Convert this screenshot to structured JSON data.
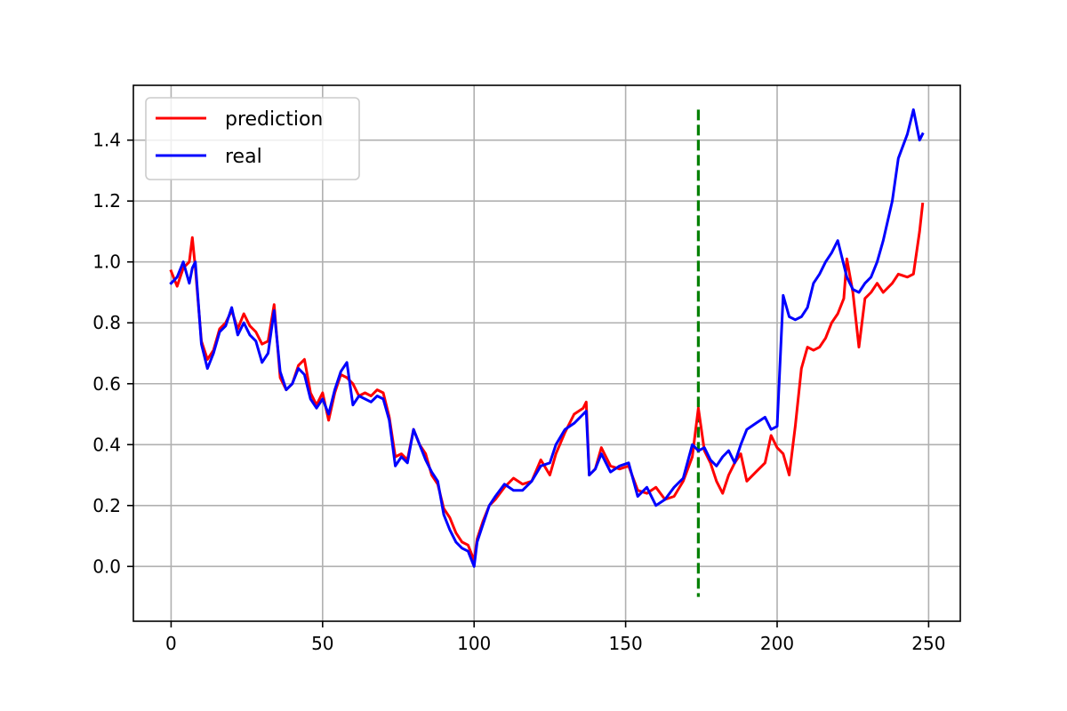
{
  "chart_data": {
    "type": "line",
    "title": "",
    "xlabel": "",
    "ylabel": "",
    "xlim": [
      -12.45,
      260.45
    ],
    "ylim": [
      -0.18,
      1.58
    ],
    "xticks": [
      0,
      50,
      100,
      150,
      200,
      250
    ],
    "yticks": [
      0.0,
      0.2,
      0.4,
      0.6,
      0.8,
      1.0,
      1.2,
      1.4
    ],
    "xtick_labels": [
      "0",
      "50",
      "100",
      "150",
      "200",
      "250"
    ],
    "ytick_labels": [
      "0.0",
      "0.2",
      "0.4",
      "0.6",
      "0.8",
      "1.0",
      "1.2",
      "1.4"
    ],
    "grid": true,
    "legend_position": "top-left",
    "vline": {
      "x": 174,
      "ymin": -0.1,
      "ymax": 1.5,
      "style": "dashed",
      "color": "#008000"
    },
    "series": [
      {
        "name": "prediction",
        "color": "#ff0000",
        "x": [
          0,
          2,
          4,
          6,
          7,
          8,
          10,
          12,
          14,
          16,
          18,
          20,
          22,
          24,
          26,
          28,
          30,
          32,
          34,
          36,
          38,
          40,
          42,
          44,
          46,
          48,
          50,
          52,
          54,
          56,
          58,
          60,
          62,
          64,
          66,
          68,
          70,
          72,
          74,
          76,
          78,
          80,
          82,
          84,
          86,
          88,
          90,
          92,
          94,
          96,
          98,
          100,
          101,
          103,
          105,
          107,
          110,
          113,
          116,
          119,
          122,
          125,
          127,
          130,
          133,
          136,
          137,
          138,
          140,
          142,
          145,
          148,
          151,
          154,
          157,
          160,
          163,
          166,
          169,
          172,
          174,
          176,
          178,
          180,
          182,
          184,
          186,
          188,
          190,
          193,
          196,
          198,
          200,
          202,
          204,
          206,
          208,
          210,
          212,
          214,
          216,
          218,
          220,
          222,
          223,
          225,
          227,
          229,
          231,
          233,
          235,
          238,
          240,
          243,
          245,
          247,
          248
        ],
        "values": [
          0.97,
          0.92,
          0.98,
          1.0,
          1.08,
          0.98,
          0.74,
          0.68,
          0.71,
          0.78,
          0.8,
          0.84,
          0.78,
          0.83,
          0.79,
          0.77,
          0.73,
          0.74,
          0.86,
          0.62,
          0.58,
          0.6,
          0.66,
          0.68,
          0.57,
          0.53,
          0.57,
          0.48,
          0.57,
          0.63,
          0.62,
          0.6,
          0.56,
          0.57,
          0.56,
          0.58,
          0.57,
          0.49,
          0.36,
          0.37,
          0.35,
          0.45,
          0.4,
          0.37,
          0.3,
          0.27,
          0.19,
          0.16,
          0.11,
          0.08,
          0.07,
          0.02,
          0.09,
          0.15,
          0.2,
          0.22,
          0.26,
          0.29,
          0.27,
          0.28,
          0.35,
          0.3,
          0.37,
          0.44,
          0.5,
          0.52,
          0.54,
          0.3,
          0.32,
          0.39,
          0.33,
          0.32,
          0.33,
          0.25,
          0.24,
          0.26,
          0.22,
          0.23,
          0.28,
          0.36,
          0.52,
          0.38,
          0.34,
          0.28,
          0.24,
          0.3,
          0.34,
          0.37,
          0.28,
          0.31,
          0.34,
          0.43,
          0.39,
          0.37,
          0.3,
          0.46,
          0.65,
          0.72,
          0.71,
          0.72,
          0.75,
          0.8,
          0.83,
          0.88,
          1.01,
          0.9,
          0.72,
          0.88,
          0.9,
          0.93,
          0.9,
          0.93,
          0.96,
          0.95,
          0.96,
          1.1,
          1.19
        ]
      },
      {
        "name": "real",
        "color": "#0000ff",
        "x": [
          0,
          2,
          4,
          6,
          7,
          8,
          10,
          12,
          14,
          16,
          18,
          20,
          22,
          24,
          26,
          28,
          30,
          32,
          34,
          36,
          38,
          40,
          42,
          44,
          46,
          48,
          50,
          52,
          54,
          56,
          58,
          60,
          62,
          64,
          66,
          68,
          70,
          72,
          74,
          76,
          78,
          80,
          82,
          84,
          86,
          88,
          90,
          92,
          94,
          96,
          98,
          100,
          101,
          103,
          105,
          107,
          110,
          113,
          116,
          119,
          122,
          125,
          127,
          130,
          133,
          136,
          137,
          138,
          140,
          142,
          145,
          148,
          151,
          154,
          157,
          160,
          163,
          166,
          169,
          172,
          174,
          176,
          178,
          180,
          182,
          184,
          186,
          188,
          190,
          193,
          196,
          198,
          200,
          202,
          204,
          206,
          208,
          210,
          212,
          214,
          216,
          218,
          220,
          222,
          223,
          225,
          227,
          229,
          231,
          233,
          235,
          238,
          240,
          243,
          245,
          247,
          248
        ],
        "values": [
          0.93,
          0.95,
          1.0,
          0.93,
          0.98,
          1.0,
          0.73,
          0.65,
          0.7,
          0.77,
          0.79,
          0.85,
          0.76,
          0.8,
          0.76,
          0.74,
          0.67,
          0.7,
          0.84,
          0.64,
          0.58,
          0.6,
          0.65,
          0.63,
          0.55,
          0.52,
          0.55,
          0.5,
          0.58,
          0.64,
          0.67,
          0.53,
          0.56,
          0.55,
          0.54,
          0.56,
          0.55,
          0.48,
          0.33,
          0.36,
          0.34,
          0.45,
          0.4,
          0.35,
          0.31,
          0.28,
          0.17,
          0.12,
          0.08,
          0.06,
          0.05,
          0.0,
          0.08,
          0.14,
          0.2,
          0.23,
          0.27,
          0.25,
          0.25,
          0.28,
          0.33,
          0.34,
          0.4,
          0.45,
          0.47,
          0.5,
          0.51,
          0.3,
          0.32,
          0.37,
          0.31,
          0.33,
          0.34,
          0.23,
          0.26,
          0.2,
          0.22,
          0.26,
          0.29,
          0.4,
          0.38,
          0.39,
          0.35,
          0.33,
          0.36,
          0.38,
          0.34,
          0.4,
          0.45,
          0.47,
          0.49,
          0.45,
          0.46,
          0.89,
          0.82,
          0.81,
          0.82,
          0.85,
          0.93,
          0.96,
          1.0,
          1.03,
          1.07,
          0.99,
          0.95,
          0.91,
          0.9,
          0.93,
          0.95,
          1.0,
          1.07,
          1.2,
          1.34,
          1.42,
          1.5,
          1.4,
          1.42
        ]
      }
    ]
  }
}
